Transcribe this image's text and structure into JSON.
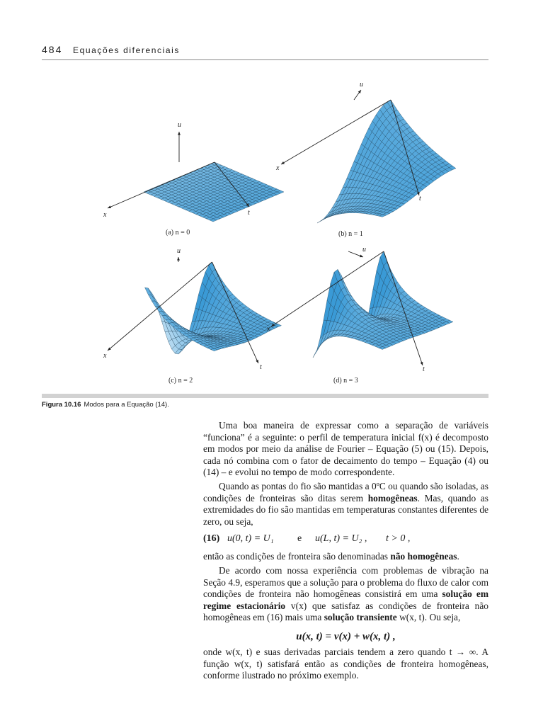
{
  "header": {
    "page_number": "484",
    "chapter_title": "Equações diferenciais"
  },
  "figure": {
    "panels": [
      {
        "label": "(a) n = 0",
        "axis_u": "u",
        "axis_x": "x",
        "axis_t": "t",
        "mode": 0
      },
      {
        "label": "(b) n = 1",
        "axis_u": "u",
        "axis_x": "x",
        "axis_t": "t",
        "mode": 1
      },
      {
        "label": "(c) n = 2",
        "axis_u": "u",
        "axis_x": "x",
        "axis_t": "t",
        "mode": 2
      },
      {
        "label": "(d) n = 3",
        "axis_u": "u",
        "axis_x": "x",
        "axis_t": "t",
        "mode": 3
      }
    ],
    "surface_color": "#3a9ad6",
    "surface_color_light": "#b9dcf2",
    "caption_label": "Figura 10.16",
    "caption_text": "Modos para a Equação (14)."
  },
  "body": {
    "p1": "Uma boa maneira de expressar como a separação de variáveis “funciona” é a seguinte: o perfil de temperatura inicial f(x) é decomposto em modos por meio da análise de Fourier – Equação (5) ou (15). Depois, cada nó combina com o fator de decaimento do tempo – Equação (4) ou (14) – e evolui no tempo de modo correspondente.",
    "p2_a": "Quando as pontas do fio são mantidas a 0ºC ou quando são isoladas, as condições de fronteiras são ditas serem ",
    "p2_bold": "homogêneas",
    "p2_b": ". Mas, quando as extremidades do fio são mantidas em temperaturas constantes diferentes de zero, ou seja,",
    "eq16_number": "(16)",
    "eq16_left": "u(0, t) = U₁",
    "eq16_conj": "e",
    "eq16_right": "u(L, t) = U₂ ,",
    "eq16_cond": "t > 0 ,",
    "p3_a": "então as condições de fronteira são denominadas ",
    "p3_bold": "não homogêneas",
    "p3_b": ".",
    "p4_a": "De acordo com nossa experiência com problemas de vibração na Seção 4.9, esperamos que a solução para o problema do fluxo de calor com condições de fronteira não homogêneas consistirá em uma ",
    "p4_bold1": "solução em regime estacionário",
    "p4_b": " v(x) que satisfaz as condições de fronteira não homogêneas em (16) mais uma ",
    "p4_bold2": "solução transiente",
    "p4_c": " w(x, t). Ou seja,",
    "eq_center": "u(x, t) = v(x) + w(x, t) ,",
    "p5": "onde w(x, t) e suas derivadas parciais tendem a zero quando t → ∞. A função w(x, t) satisfará então as condições de fronteira homogêneas, conforme ilustrado no próximo exemplo."
  }
}
